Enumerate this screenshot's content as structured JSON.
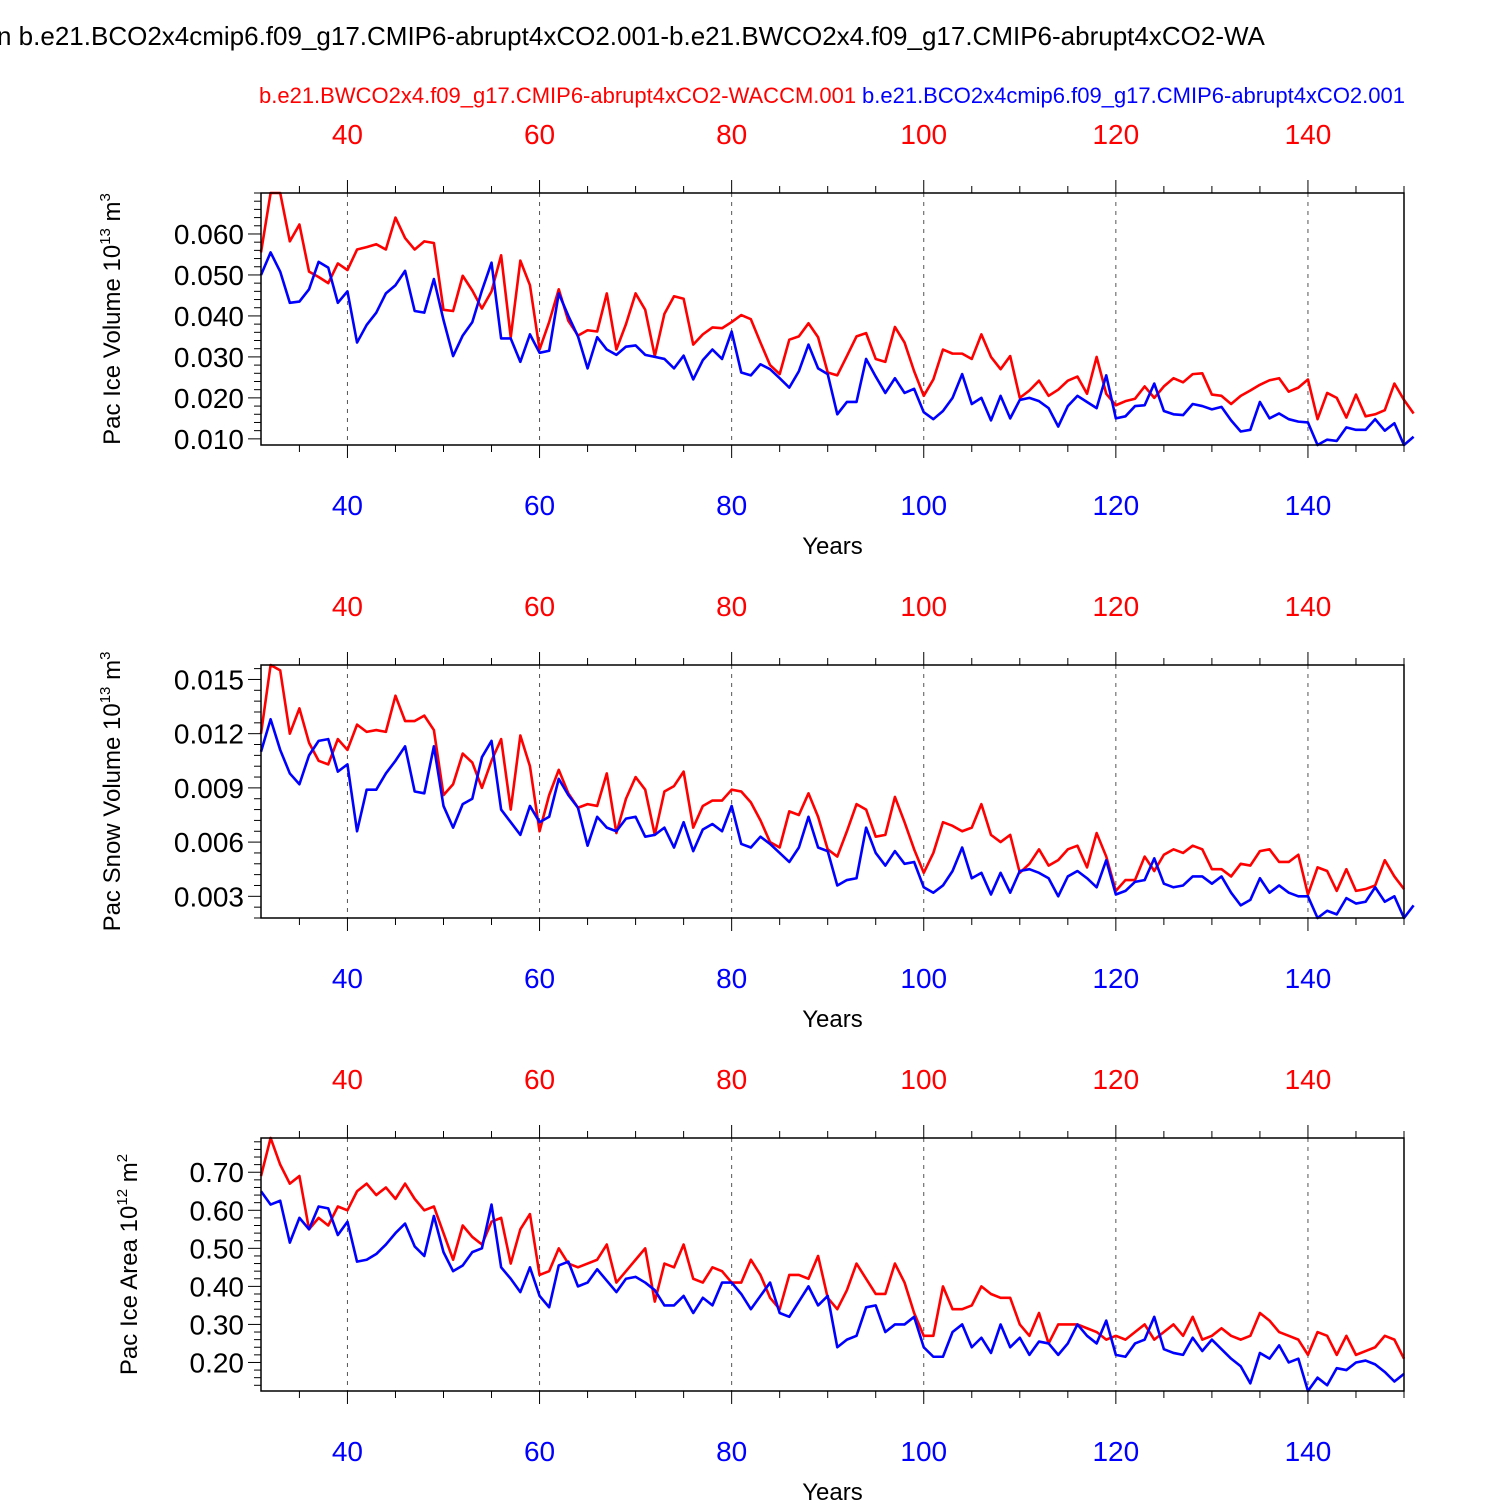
{
  "title": "n b.e21.BCO2x4cmip6.f09_g17.CMIP6-abrupt4xCO2.001-b.e21.BWCO2x4.f09_g17.CMIP6-abrupt4xCO2-WA",
  "colors": {
    "red": "#ff0000",
    "blue": "#0000ff",
    "black": "#000000"
  },
  "legend": {
    "red_label": "b.e21.BWCO2x4.f09_g17.CMIP6-abrupt4xCO2-WACCM.001",
    "blue_label": "b.e21.BCO2x4cmip6.f09_g17.CMIP6-abrupt4xCO2.001"
  },
  "chart_data": [
    {
      "type": "line",
      "id": "ice-volume",
      "ylabel": "Pac Ice Volume",
      "yunit_base": "10",
      "yunit_exp": "13",
      "yunit_tail": "m",
      "yunit_tail_exp": "3",
      "xlabel": "Years",
      "xlim": [
        31,
        150
      ],
      "ylim": [
        0.0085,
        0.07
      ],
      "yticks": [
        0.01,
        0.02,
        0.03,
        0.04,
        0.05,
        0.06
      ],
      "ytick_labels": [
        "0.010",
        "0.020",
        "0.030",
        "0.040",
        "0.050",
        "0.060"
      ],
      "xticks": [
        40,
        60,
        80,
        100,
        120,
        140
      ],
      "xtick_labels": [
        "40",
        "60",
        "80",
        "100",
        "120",
        "140"
      ],
      "grid": "vertical dashed",
      "x_start": 31,
      "series": [
        {
          "color": "red",
          "values": [
            0.0555,
            0.07,
            0.07,
            0.0582,
            0.0623,
            0.0508,
            0.0495,
            0.048,
            0.0528,
            0.0512,
            0.0562,
            0.0568,
            0.0575,
            0.0562,
            0.064,
            0.059,
            0.0562,
            0.0582,
            0.0578,
            0.0415,
            0.0412,
            0.0498,
            0.0462,
            0.0418,
            0.046,
            0.0548,
            0.0348,
            0.0535,
            0.0475,
            0.0318,
            0.0385,
            0.0465,
            0.0388,
            0.0352,
            0.0365,
            0.0362,
            0.0455,
            0.0318,
            0.038,
            0.0455,
            0.0415,
            0.0302,
            0.0405,
            0.0448,
            0.0442,
            0.033,
            0.0355,
            0.0372,
            0.037,
            0.0385,
            0.0402,
            0.0392,
            0.0335,
            0.028,
            0.0258,
            0.0342,
            0.035,
            0.0382,
            0.0348,
            0.0262,
            0.0255,
            0.0302,
            0.035,
            0.0358,
            0.0295,
            0.0288,
            0.0373,
            0.0335,
            0.0265,
            0.0205,
            0.0245,
            0.0318,
            0.0308,
            0.0308,
            0.0295,
            0.0355,
            0.03,
            0.027,
            0.0302,
            0.02,
            0.0218,
            0.0242,
            0.0205,
            0.022,
            0.0242,
            0.0252,
            0.021,
            0.03,
            0.021,
            0.0182,
            0.0192,
            0.0198,
            0.0228,
            0.02,
            0.0228,
            0.0248,
            0.0238,
            0.0258,
            0.026,
            0.0208,
            0.0205,
            0.0185,
            0.0205,
            0.0218,
            0.0232,
            0.0243,
            0.0248,
            0.0215,
            0.0225,
            0.0245,
            0.0148,
            0.0212,
            0.02,
            0.0152,
            0.0208,
            0.0155,
            0.016,
            0.017,
            0.0235,
            0.0195,
            0.0162
          ]
        },
        {
          "color": "blue",
          "values": [
            0.05,
            0.0555,
            0.0508,
            0.0432,
            0.0435,
            0.0465,
            0.0532,
            0.0518,
            0.0432,
            0.046,
            0.0335,
            0.0378,
            0.0408,
            0.0455,
            0.0475,
            0.051,
            0.0412,
            0.0408,
            0.049,
            0.039,
            0.0302,
            0.0352,
            0.0385,
            0.0462,
            0.053,
            0.0345,
            0.0345,
            0.0288,
            0.0355,
            0.031,
            0.0315,
            0.0455,
            0.04,
            0.035,
            0.0272,
            0.0348,
            0.0318,
            0.0305,
            0.0325,
            0.0328,
            0.0305,
            0.03,
            0.0295,
            0.0272,
            0.0303,
            0.0245,
            0.0292,
            0.0318,
            0.0295,
            0.0362,
            0.0262,
            0.0255,
            0.0282,
            0.027,
            0.0248,
            0.0225,
            0.0265,
            0.033,
            0.0272,
            0.0258,
            0.016,
            0.019,
            0.019,
            0.0295,
            0.0252,
            0.0212,
            0.0248,
            0.0212,
            0.0222,
            0.0165,
            0.0148,
            0.0168,
            0.02,
            0.0258,
            0.0185,
            0.02,
            0.0145,
            0.0205,
            0.015,
            0.0195,
            0.02,
            0.0192,
            0.0175,
            0.013,
            0.018,
            0.0205,
            0.019,
            0.0175,
            0.0255,
            0.015,
            0.0155,
            0.018,
            0.0182,
            0.0235,
            0.0168,
            0.016,
            0.0158,
            0.0185,
            0.018,
            0.0172,
            0.0178,
            0.0145,
            0.0118,
            0.0122,
            0.019,
            0.015,
            0.0162,
            0.0148,
            0.0142,
            0.014,
            0.0085,
            0.0098,
            0.0095,
            0.0128,
            0.0122,
            0.0122,
            0.0148,
            0.012,
            0.0138,
            0.0085,
            0.0105
          ]
        }
      ]
    },
    {
      "type": "line",
      "id": "snow-volume",
      "ylabel": "Pac Snow Volume",
      "yunit_base": "10",
      "yunit_exp": "13",
      "yunit_tail": "m",
      "yunit_tail_exp": "3",
      "xlabel": "Years",
      "xlim": [
        31,
        150
      ],
      "ylim": [
        0.0018,
        0.0158
      ],
      "yticks": [
        0.003,
        0.006,
        0.009,
        0.012,
        0.015
      ],
      "ytick_labels": [
        "0.003",
        "0.006",
        "0.009",
        "0.012",
        "0.015"
      ],
      "xticks": [
        40,
        60,
        80,
        100,
        120,
        140
      ],
      "xtick_labels": [
        "40",
        "60",
        "80",
        "100",
        "120",
        "140"
      ],
      "grid": "vertical dashed",
      "x_start": 31,
      "series": [
        {
          "color": "red",
          "values": [
            0.012,
            0.0158,
            0.0155,
            0.012,
            0.0134,
            0.0115,
            0.0105,
            0.0103,
            0.0117,
            0.0111,
            0.0125,
            0.0121,
            0.0122,
            0.0121,
            0.0141,
            0.0127,
            0.0127,
            0.013,
            0.0122,
            0.0086,
            0.0092,
            0.0109,
            0.0104,
            0.009,
            0.0105,
            0.0117,
            0.0078,
            0.0119,
            0.0102,
            0.0066,
            0.0086,
            0.01,
            0.0087,
            0.0079,
            0.0081,
            0.008,
            0.0098,
            0.0065,
            0.0084,
            0.0096,
            0.0089,
            0.0064,
            0.0088,
            0.0091,
            0.0099,
            0.0068,
            0.008,
            0.0083,
            0.0083,
            0.0089,
            0.0088,
            0.0082,
            0.0072,
            0.006,
            0.0057,
            0.0077,
            0.0075,
            0.0087,
            0.0074,
            0.0056,
            0.0052,
            0.0066,
            0.0081,
            0.0078,
            0.0063,
            0.0064,
            0.0085,
            0.0071,
            0.0056,
            0.0043,
            0.0054,
            0.0071,
            0.0069,
            0.0066,
            0.0068,
            0.0081,
            0.0064,
            0.006,
            0.0064,
            0.0043,
            0.0048,
            0.0056,
            0.0047,
            0.005,
            0.0056,
            0.0058,
            0.0046,
            0.0065,
            0.0052,
            0.0033,
            0.0039,
            0.0039,
            0.0052,
            0.0044,
            0.0053,
            0.0056,
            0.0054,
            0.0058,
            0.0056,
            0.0045,
            0.0045,
            0.0041,
            0.0048,
            0.0047,
            0.0055,
            0.0056,
            0.0049,
            0.0049,
            0.0053,
            0.0031,
            0.0046,
            0.0044,
            0.0033,
            0.0045,
            0.0033,
            0.0034,
            0.0036,
            0.005,
            0.0041,
            0.0034
          ]
        },
        {
          "color": "blue",
          "values": [
            0.011,
            0.0128,
            0.0111,
            0.0098,
            0.0092,
            0.0108,
            0.0116,
            0.0117,
            0.0099,
            0.0103,
            0.0066,
            0.0089,
            0.0089,
            0.0098,
            0.0105,
            0.0113,
            0.0088,
            0.0087,
            0.0113,
            0.008,
            0.0068,
            0.0081,
            0.0084,
            0.0107,
            0.0116,
            0.0078,
            0.0071,
            0.0064,
            0.008,
            0.0071,
            0.0074,
            0.0095,
            0.0086,
            0.0079,
            0.0058,
            0.0074,
            0.0068,
            0.0066,
            0.0073,
            0.0074,
            0.0063,
            0.0064,
            0.0068,
            0.0057,
            0.0071,
            0.0055,
            0.0067,
            0.007,
            0.0066,
            0.008,
            0.0059,
            0.0057,
            0.0063,
            0.0059,
            0.0054,
            0.0049,
            0.0057,
            0.0074,
            0.0057,
            0.0055,
            0.0036,
            0.0039,
            0.004,
            0.0068,
            0.0054,
            0.0047,
            0.0055,
            0.0048,
            0.0049,
            0.0035,
            0.0032,
            0.0036,
            0.0044,
            0.0057,
            0.004,
            0.0043,
            0.0031,
            0.0043,
            0.0032,
            0.0044,
            0.0045,
            0.0043,
            0.004,
            0.003,
            0.0041,
            0.0044,
            0.004,
            0.0035,
            0.005,
            0.0031,
            0.0033,
            0.0038,
            0.0039,
            0.0051,
            0.0037,
            0.0035,
            0.0036,
            0.0041,
            0.0041,
            0.0037,
            0.0041,
            0.0032,
            0.0025,
            0.0028,
            0.004,
            0.0032,
            0.0036,
            0.0032,
            0.003,
            0.003,
            0.0018,
            0.0022,
            0.002,
            0.0029,
            0.0026,
            0.0027,
            0.0035,
            0.0027,
            0.003,
            0.0018,
            0.0025
          ]
        }
      ]
    },
    {
      "type": "line",
      "id": "ice-area",
      "ylabel": "Pac Ice Area",
      "yunit_base": "10",
      "yunit_exp": "12",
      "yunit_tail": "m",
      "yunit_tail_exp": "2",
      "xlabel": "Years",
      "xlim": [
        31,
        150
      ],
      "ylim": [
        0.125,
        0.79
      ],
      "yticks": [
        0.2,
        0.3,
        0.4,
        0.5,
        0.6,
        0.7
      ],
      "ytick_labels": [
        "0.20",
        "0.30",
        "0.40",
        "0.50",
        "0.60",
        "0.70"
      ],
      "xticks": [
        40,
        60,
        80,
        100,
        120,
        140
      ],
      "xtick_labels": [
        "40",
        "60",
        "80",
        "100",
        "120",
        "140"
      ],
      "grid": "vertical dashed",
      "x_start": 31,
      "series": [
        {
          "color": "red",
          "values": [
            0.69,
            0.79,
            0.72,
            0.67,
            0.69,
            0.55,
            0.58,
            0.56,
            0.61,
            0.6,
            0.65,
            0.67,
            0.64,
            0.66,
            0.63,
            0.67,
            0.63,
            0.6,
            0.61,
            0.54,
            0.47,
            0.56,
            0.53,
            0.51,
            0.57,
            0.58,
            0.46,
            0.55,
            0.59,
            0.43,
            0.44,
            0.5,
            0.46,
            0.45,
            0.46,
            0.47,
            0.51,
            0.41,
            0.44,
            0.47,
            0.5,
            0.36,
            0.46,
            0.45,
            0.51,
            0.42,
            0.41,
            0.45,
            0.44,
            0.41,
            0.41,
            0.47,
            0.43,
            0.37,
            0.34,
            0.43,
            0.43,
            0.42,
            0.48,
            0.37,
            0.34,
            0.39,
            0.46,
            0.42,
            0.38,
            0.38,
            0.46,
            0.41,
            0.33,
            0.27,
            0.27,
            0.4,
            0.34,
            0.34,
            0.35,
            0.4,
            0.38,
            0.37,
            0.37,
            0.3,
            0.27,
            0.33,
            0.25,
            0.3,
            0.3,
            0.3,
            0.29,
            0.28,
            0.26,
            0.27,
            0.26,
            0.28,
            0.3,
            0.26,
            0.28,
            0.3,
            0.27,
            0.32,
            0.26,
            0.27,
            0.29,
            0.27,
            0.26,
            0.27,
            0.33,
            0.31,
            0.28,
            0.27,
            0.26,
            0.22,
            0.28,
            0.27,
            0.22,
            0.27,
            0.22,
            0.23,
            0.24,
            0.27,
            0.26,
            0.21
          ]
        },
        {
          "color": "blue",
          "values": [
            0.65,
            0.615,
            0.625,
            0.515,
            0.58,
            0.55,
            0.61,
            0.605,
            0.535,
            0.57,
            0.465,
            0.47,
            0.485,
            0.51,
            0.54,
            0.565,
            0.505,
            0.48,
            0.585,
            0.49,
            0.44,
            0.455,
            0.49,
            0.5,
            0.615,
            0.45,
            0.42,
            0.385,
            0.45,
            0.375,
            0.345,
            0.455,
            0.465,
            0.4,
            0.41,
            0.445,
            0.415,
            0.385,
            0.42,
            0.425,
            0.41,
            0.39,
            0.35,
            0.35,
            0.375,
            0.33,
            0.37,
            0.35,
            0.41,
            0.41,
            0.38,
            0.34,
            0.375,
            0.41,
            0.33,
            0.32,
            0.36,
            0.4,
            0.35,
            0.375,
            0.24,
            0.26,
            0.27,
            0.345,
            0.35,
            0.28,
            0.3,
            0.3,
            0.32,
            0.24,
            0.215,
            0.215,
            0.28,
            0.3,
            0.24,
            0.265,
            0.225,
            0.3,
            0.24,
            0.265,
            0.22,
            0.255,
            0.25,
            0.22,
            0.25,
            0.3,
            0.27,
            0.25,
            0.31,
            0.22,
            0.215,
            0.25,
            0.26,
            0.32,
            0.235,
            0.225,
            0.22,
            0.265,
            0.23,
            0.26,
            0.235,
            0.21,
            0.19,
            0.145,
            0.225,
            0.21,
            0.245,
            0.2,
            0.21,
            0.125,
            0.16,
            0.14,
            0.185,
            0.18,
            0.2,
            0.205,
            0.195,
            0.175,
            0.15,
            0.17
          ]
        }
      ]
    }
  ]
}
